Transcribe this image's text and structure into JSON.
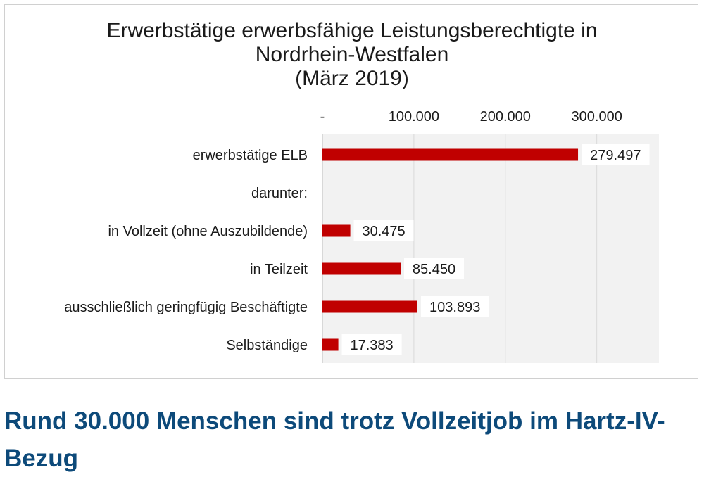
{
  "chart_data": {
    "type": "bar",
    "orientation": "horizontal",
    "title": [
      "Erwerbstätige erwerbsfähige Leistungsberechtigte in",
      "Nordrhein-Westfalen",
      "(März 2019)"
    ],
    "categories": [
      "erwerbstätige ELB",
      "darunter:",
      "in Vollzeit (ohne Auszubildende)",
      "in Teilzeit",
      "ausschließlich geringfügig Beschäftigte",
      "Selbständige"
    ],
    "values": [
      279497,
      null,
      30475,
      85450,
      103893,
      17383
    ],
    "data_labels": [
      "279.497",
      "",
      "30.475",
      "85.450",
      "103.893",
      "17.383"
    ],
    "x_ticks": [
      0,
      100000,
      200000,
      300000
    ],
    "x_tick_labels": [
      "-",
      "100.000",
      "200.000",
      "300.000"
    ],
    "xlim": [
      0,
      368000
    ],
    "xlabel": "",
    "ylabel": "",
    "grid": true,
    "axis_position": "top",
    "legend": "none",
    "bar_color": "#c00000",
    "plot_background": "#f2f2f2"
  },
  "headline": "Rund 30.000 Menschen sind trotz Vollzeitjob im Hartz-IV-Bezug",
  "colors": {
    "headline": "#0d4a7a",
    "bar": "#c00000"
  }
}
